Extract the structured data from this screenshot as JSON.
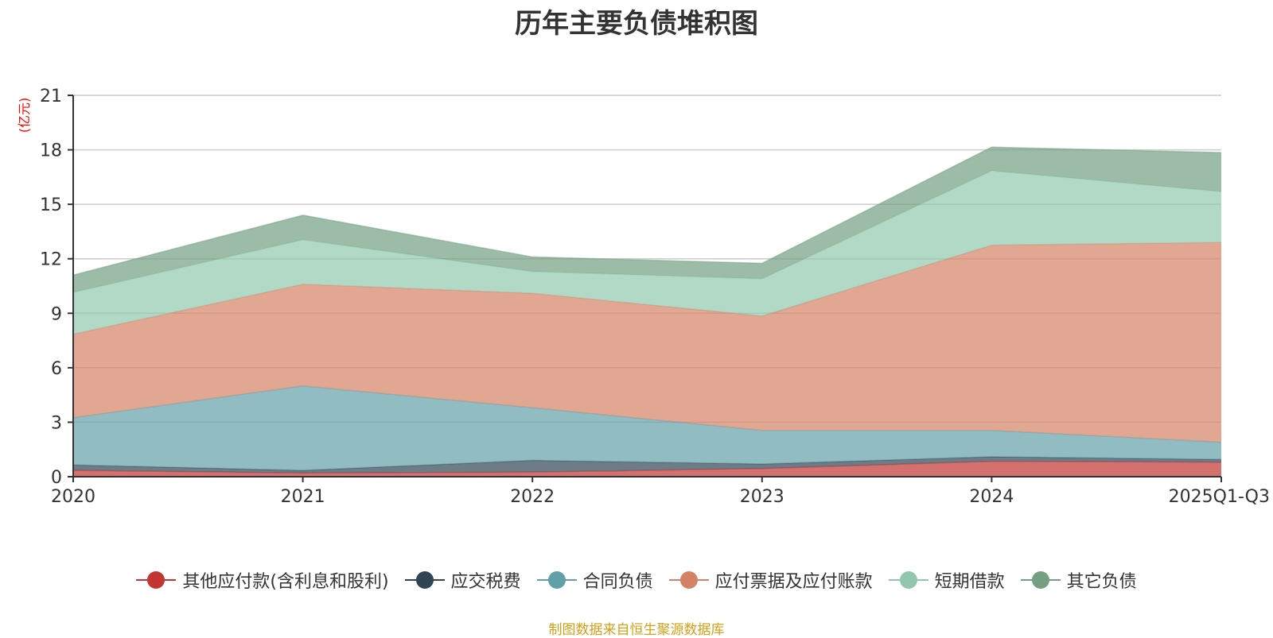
{
  "chart_data": {
    "type": "area",
    "stacked": true,
    "title": "历年主要负债堆积图",
    "ylabel": "(亿元)",
    "xlabel": "",
    "categories": [
      "2020",
      "2021",
      "2022",
      "2023",
      "2024",
      "2025Q1-Q3"
    ],
    "ylim": [
      0,
      21
    ],
    "yticks": [
      0,
      3,
      6,
      9,
      12,
      15,
      18,
      21
    ],
    "grid": true,
    "legend_position": "bottom",
    "series": [
      {
        "name": "其他应付款(含利息和股利)",
        "color": "#c23531",
        "values": [
          0.35,
          0.2,
          0.25,
          0.45,
          0.85,
          0.8
        ]
      },
      {
        "name": "应交税费",
        "color": "#2f4554",
        "values": [
          0.3,
          0.15,
          0.65,
          0.25,
          0.25,
          0.15
        ]
      },
      {
        "name": "合同负债",
        "color": "#61a0a8",
        "values": [
          2.6,
          4.65,
          2.9,
          1.85,
          1.45,
          0.95
        ]
      },
      {
        "name": "应付票据及应付账款",
        "color": "#d48265",
        "values": [
          4.6,
          5.6,
          6.3,
          6.3,
          10.2,
          11.0
        ]
      },
      {
        "name": "短期借款",
        "color": "#91c7ae",
        "values": [
          2.3,
          2.45,
          1.2,
          2.05,
          4.1,
          2.8
        ]
      },
      {
        "name": "其它负债",
        "color": "#749f83",
        "values": [
          0.95,
          1.35,
          0.8,
          0.85,
          1.3,
          2.15
        ]
      }
    ]
  },
  "source_note": "制图数据来自恒生聚源数据库"
}
